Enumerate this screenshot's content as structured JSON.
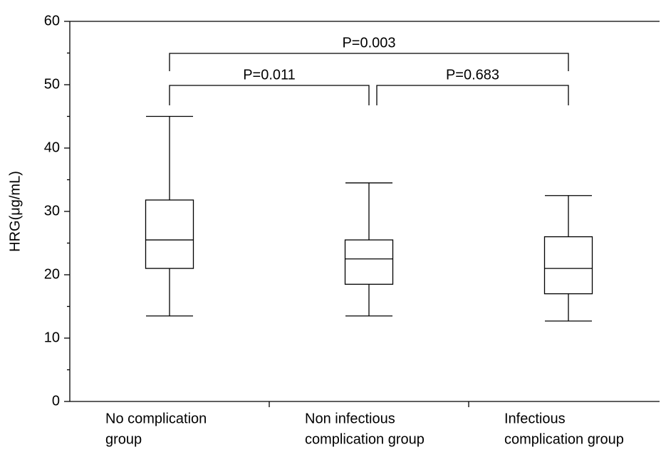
{
  "chart_data": {
    "type": "box",
    "y_label": "HRG(μg/mL)",
    "categories": [
      [
        "No complication",
        "group"
      ],
      [
        "Non infectious",
        "complication group"
      ],
      [
        "Infectious",
        "complication group"
      ]
    ],
    "boxes": [
      {
        "min": 13.5,
        "q1": 21,
        "median": 25.5,
        "q3": 31.8,
        "max": 45
      },
      {
        "min": 13.5,
        "q1": 18.5,
        "median": 22.5,
        "q3": 25.5,
        "max": 34.5
      },
      {
        "min": 12.7,
        "q1": 17,
        "median": 21,
        "q3": 26,
        "max": 32.5
      }
    ],
    "color": "#000000",
    "ylim": [
      0,
      60
    ],
    "yticks": [
      0,
      10,
      20,
      30,
      40,
      50,
      60
    ],
    "annotations": [
      {
        "text": "P=0.003",
        "from": 0,
        "to": 2
      },
      {
        "text": "P=0.011",
        "from": 0,
        "to": 1
      },
      {
        "text": "P=0.683",
        "from": 1,
        "to": 2
      }
    ]
  }
}
